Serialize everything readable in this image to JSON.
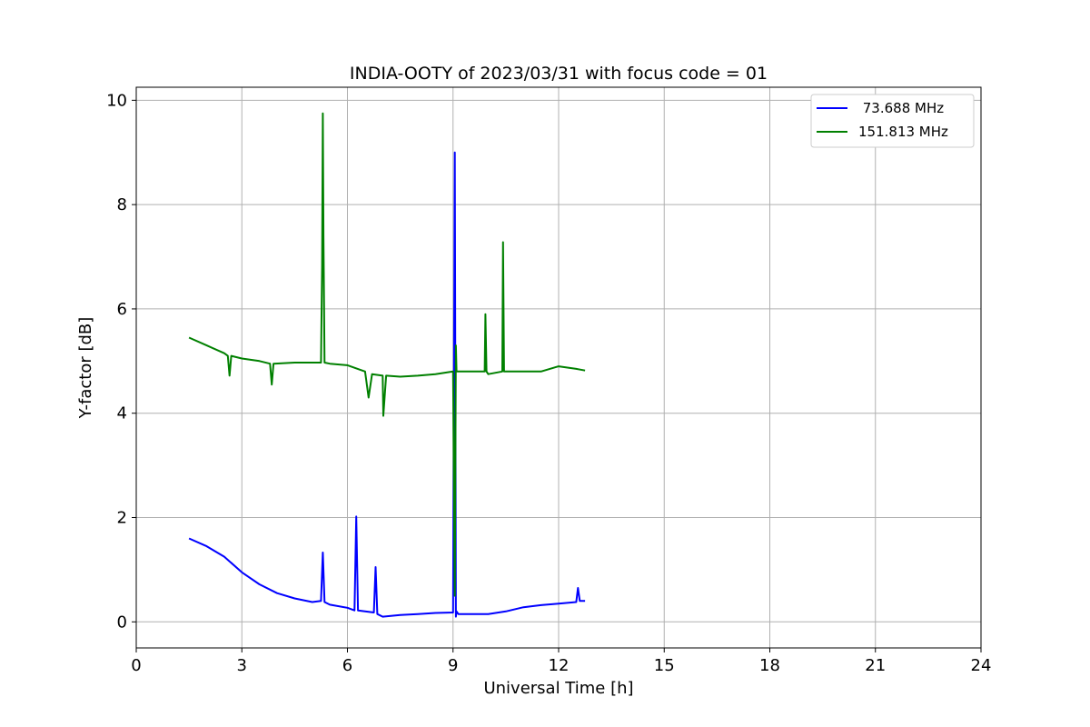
{
  "chart_data": {
    "type": "line",
    "title": "INDIA-OOTY of 2023/03/31 with focus code = 01",
    "xlabel": "Universal Time [h]",
    "ylabel": "Y-factor [dB]",
    "xlim": [
      0,
      24
    ],
    "ylim": [
      -0.5,
      10.25
    ],
    "xticks": [
      0,
      3,
      6,
      9,
      12,
      15,
      18,
      21,
      24
    ],
    "yticks": [
      0,
      2,
      4,
      6,
      8,
      10
    ],
    "grid": true,
    "legend_position": "top-right",
    "series": [
      {
        "name": " 73.688 MHz",
        "color": "#0000ff",
        "x": [
          1.5,
          2.0,
          2.5,
          3.0,
          3.5,
          4.0,
          4.5,
          5.0,
          5.25,
          5.3,
          5.35,
          5.5,
          6.0,
          6.2,
          6.25,
          6.3,
          6.5,
          6.75,
          6.8,
          6.85,
          7.0,
          7.5,
          8.0,
          8.5,
          9.0,
          9.05,
          9.08,
          9.1,
          9.15,
          9.5,
          10.0,
          10.5,
          11.0,
          11.5,
          12.0,
          12.5,
          12.55,
          12.6,
          12.75
        ],
        "y": [
          1.6,
          1.45,
          1.25,
          0.95,
          0.72,
          0.55,
          0.45,
          0.38,
          0.4,
          1.33,
          0.38,
          0.33,
          0.27,
          0.22,
          2.02,
          0.22,
          0.2,
          0.18,
          1.05,
          0.15,
          0.1,
          0.13,
          0.15,
          0.17,
          0.18,
          9.0,
          0.1,
          0.2,
          0.15,
          0.15,
          0.15,
          0.2,
          0.28,
          0.32,
          0.35,
          0.38,
          0.65,
          0.4,
          0.4
        ]
      },
      {
        "name": "151.813 MHz",
        "color": "#008000",
        "x": [
          1.5,
          2.0,
          2.5,
          2.6,
          2.65,
          2.7,
          3.0,
          3.5,
          3.8,
          3.85,
          3.9,
          4.5,
          5.0,
          5.25,
          5.28,
          5.3,
          5.32,
          5.35,
          5.5,
          6.0,
          6.5,
          6.6,
          6.7,
          7.0,
          7.02,
          7.1,
          7.5,
          8.0,
          8.5,
          9.0,
          9.05,
          9.08,
          9.1,
          9.15,
          9.5,
          9.9,
          9.92,
          9.95,
          10.0,
          10.4,
          10.42,
          10.45,
          10.5,
          11.0,
          11.5,
          12.0,
          12.5,
          12.75
        ],
        "y": [
          5.45,
          5.3,
          5.15,
          5.1,
          4.72,
          5.1,
          5.05,
          5.0,
          4.95,
          4.55,
          4.95,
          4.97,
          4.97,
          4.97,
          6.8,
          9.75,
          7.4,
          4.97,
          4.95,
          4.92,
          4.8,
          4.3,
          4.75,
          4.72,
          3.95,
          4.72,
          4.7,
          4.72,
          4.75,
          4.8,
          0.5,
          5.3,
          4.8,
          4.8,
          4.8,
          4.8,
          5.9,
          4.8,
          4.75,
          4.8,
          7.28,
          4.8,
          4.8,
          4.8,
          4.8,
          4.9,
          4.85,
          4.82
        ]
      }
    ]
  }
}
